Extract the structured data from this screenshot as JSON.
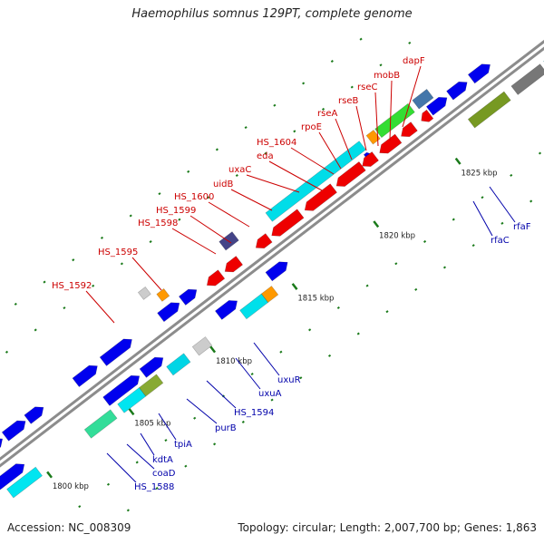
{
  "title": "Haemophilus somnus 129PT, complete genome",
  "footer": {
    "accession": "Accession: NC_008309",
    "summary": "Topology: circular; Length: 2,007,700 bp; Genes: 1,863"
  },
  "ticks": [
    "1800 kbp",
    "1805 kbp",
    "1810 kbp",
    "1815 kbp",
    "1820 kbp",
    "1825 kbp"
  ],
  "upper_labels": [
    "HS_1592",
    "HS_1595",
    "HS_1598",
    "HS_1599",
    "HS_1600",
    "uidB",
    "uxaC",
    "eda",
    "HS_1604",
    "rpoE",
    "rseA",
    "rseB",
    "rseC",
    "mobB",
    "dapF"
  ],
  "lower_labels": [
    "HS_1588",
    "coaD",
    "kdtA",
    "tpiA",
    "purB",
    "HS_1594",
    "uxuA",
    "uxuR",
    "rfaC",
    "rfaF"
  ],
  "colors": {
    "forward_gene": "#0000ee",
    "reverse_gene": "#ee0000",
    "backbone": "#8c8c8c",
    "upper_label": "#cc0000",
    "lower_label": "#0000aa",
    "tick_mark": "#1a7a1a"
  }
}
